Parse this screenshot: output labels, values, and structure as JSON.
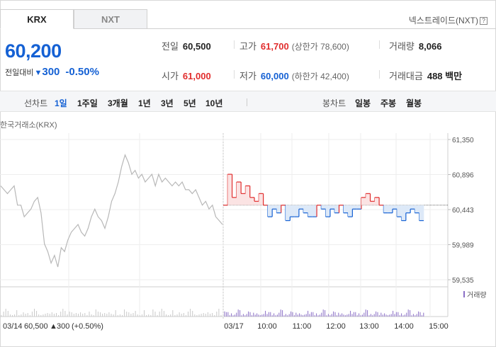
{
  "tabs": [
    {
      "label": "KRX",
      "active": true
    },
    {
      "label": "NXT",
      "active": false
    }
  ],
  "nxt_link": {
    "label": "넥스트레이드(NXT)",
    "help": "?"
  },
  "quote": {
    "price": "60,200",
    "change_label": "전일대비",
    "change": "300",
    "change_pct": "-0.50%"
  },
  "stats": {
    "prev_close": {
      "label": "전일",
      "value": "60,500"
    },
    "high": {
      "label": "고가",
      "value": "61,700",
      "sub": "(상한가 78,600)"
    },
    "volume": {
      "label": "거래량",
      "value": "8,066"
    },
    "open": {
      "label": "시가",
      "value": "61,000"
    },
    "low": {
      "label": "저가",
      "value": "60,000",
      "sub": "(하한가 42,400)"
    },
    "amount": {
      "label": "거래대금",
      "value": "488 백만"
    }
  },
  "periods": {
    "line_header": "선차트",
    "line_items": [
      "1일",
      "1주일",
      "3개월",
      "1년",
      "3년",
      "5년",
      "10년"
    ],
    "selected": "1일",
    "candle_header": "봉차트",
    "candle_items": [
      "일봉",
      "주봉",
      "월봉"
    ]
  },
  "source_label": "한국거래소(KRX)",
  "colors": {
    "up": "#e12d2d",
    "down": "#1561d4",
    "prev_day_line": "#b8b8b8",
    "volume_bar": "#8a6fc6"
  },
  "chart_data": {
    "type": "line",
    "y_ticks": [
      "61,350",
      "60,896",
      "60,443",
      "59,989",
      "59,535"
    ],
    "ylim": [
      59535,
      61350
    ],
    "baseline": 60500,
    "x_ticks": [
      "03/17",
      "10:00",
      "11:00",
      "12:00",
      "13:00",
      "14:00",
      "15:00"
    ],
    "footer": {
      "date": "03/14",
      "close": "60,500",
      "change": "300",
      "change_pct": "(+0.50%)"
    },
    "volume_legend": "거래량",
    "prev_day": [
      60750,
      60700,
      60650,
      60700,
      60750,
      60500,
      60500,
      60350,
      60400,
      60450,
      60550,
      60600,
      60400,
      60000,
      59900,
      59750,
      59850,
      59700,
      59950,
      59900,
      60050,
      60150,
      60200,
      60250,
      60150,
      60100,
      60200,
      60350,
      60450,
      60350,
      60300,
      60200,
      60350,
      60550,
      60650,
      60800,
      61000,
      61150,
      61050,
      60900,
      60950,
      60850,
      60900,
      60800,
      60850,
      60900,
      60750,
      60900,
      60800,
      60850,
      60800,
      60750,
      60800,
      60750,
      60800,
      60700,
      60700,
      60650,
      60700,
      60600,
      60500,
      60550,
      60450,
      60500,
      60350,
      60300,
      60250
    ],
    "today": [
      60500,
      60900,
      60600,
      60800,
      60650,
      60750,
      60600,
      60550,
      60650,
      60500,
      60350,
      60450,
      60400,
      60500,
      60300,
      60350,
      60350,
      60450,
      60400,
      60350,
      60350,
      60500,
      60450,
      60350,
      60450,
      60400,
      60500,
      60400,
      60350,
      60450,
      60450,
      60600,
      60650,
      60550,
      60600,
      60500,
      60400,
      60400,
      60450,
      60350,
      60300,
      60400,
      60450,
      60400,
      60300,
      60300
    ]
  }
}
